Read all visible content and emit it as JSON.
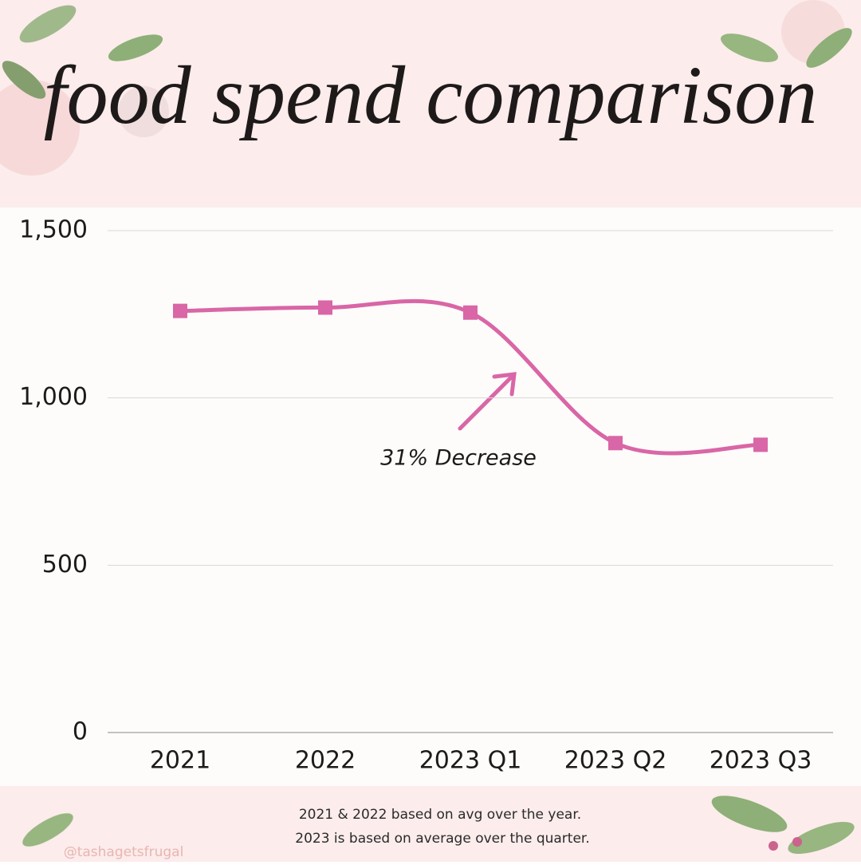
{
  "chart_data": {
    "type": "line",
    "title": "food spend comparison",
    "categories": [
      "2021",
      "2022",
      "2023 Q1",
      "2023 Q2",
      "2023 Q3"
    ],
    "series": [
      {
        "color": "#d966a6",
        "values": [
          1260,
          1270,
          1255,
          865,
          860
        ]
      }
    ],
    "ylim": [
      0,
      1500
    ],
    "yticks": [
      0,
      500,
      {
        "value": 1000,
        "label": "1,000"
      },
      {
        "value": 1500,
        "label": "1,500"
      }
    ],
    "grid": true,
    "annotation": "31% Decrease",
    "notes": [
      "2021 & 2022 based on avg over the year.",
      "2023 is based on average over the quarter."
    ],
    "watermark": "@tashagetsfrugal"
  }
}
